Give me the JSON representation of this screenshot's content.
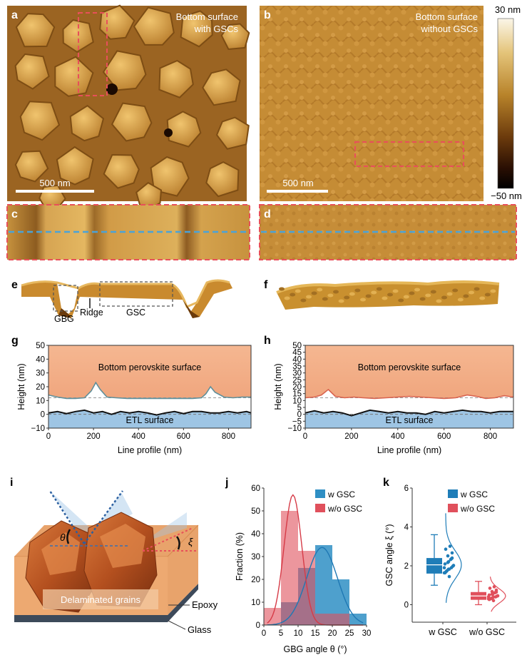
{
  "panel_letters": {
    "a": "a",
    "b": "b",
    "c": "c",
    "d": "d",
    "e": "e",
    "f": "f",
    "g": "g",
    "h": "h",
    "i": "i",
    "j": "j",
    "k": "k"
  },
  "panel_a": {
    "title_line1": "Bottom surface",
    "title_line2": "with GSCs",
    "scalebar": "500 nm"
  },
  "panel_b": {
    "title_line1": "Bottom surface",
    "title_line2": "without GSCs",
    "scalebar": "500 nm"
  },
  "colorbar": {
    "max": "30 nm",
    "min": "−50 nm"
  },
  "panel_e": {
    "labels": {
      "gbg": "GBG",
      "ridge": "Ridge",
      "gsc": "GSC"
    }
  },
  "panel_i": {
    "labels": {
      "theta": "θ",
      "xi": "ξ",
      "delaminated": "Delaminated grains",
      "epoxy": "Epoxy",
      "glass": "Glass"
    }
  },
  "chart_data": [
    {
      "id": "g",
      "type": "line",
      "xlabel": "Line profile (nm)",
      "ylabel": "Height (nm)",
      "xlim": [
        0,
        900
      ],
      "ylim": [
        -10,
        50
      ],
      "xticks": [
        0,
        200,
        400,
        600,
        800
      ],
      "yticks": [
        -10,
        0,
        10,
        20,
        30,
        40,
        50
      ],
      "annotations": [
        "Bottom perovskite surface",
        "ETL surface"
      ],
      "series": [
        {
          "role": "top",
          "color": "#5f8f9a",
          "x": [
            0,
            40,
            80,
            120,
            160,
            190,
            210,
            230,
            260,
            300,
            350,
            400,
            450,
            500,
            550,
            600,
            640,
            680,
            700,
            720,
            740,
            780,
            820,
            860,
            900
          ],
          "y": [
            14,
            12.5,
            11.5,
            11.5,
            12,
            17,
            23,
            18,
            12.5,
            12,
            11.5,
            11.5,
            11.5,
            11.5,
            11.5,
            11.5,
            11.5,
            12,
            15,
            20,
            16,
            12.5,
            12,
            12.5,
            12.5
          ]
        },
        {
          "role": "bottom",
          "color": "#111111",
          "x": [
            0,
            40,
            80,
            120,
            160,
            200,
            240,
            280,
            320,
            360,
            400,
            440,
            480,
            520,
            560,
            600,
            640,
            680,
            720,
            760,
            800,
            840,
            880,
            900
          ],
          "y": [
            1,
            2,
            0.5,
            2,
            3,
            1,
            2,
            0,
            2,
            1,
            2,
            1,
            -0.5,
            1,
            2,
            0.5,
            2,
            2,
            1,
            1,
            2,
            1,
            2,
            1
          ]
        }
      ]
    },
    {
      "id": "h",
      "type": "line",
      "xlabel": "Line profile (nm)",
      "ylabel": "Height (nm)",
      "xlim": [
        0,
        900
      ],
      "ylim": [
        -10,
        50
      ],
      "xticks": [
        0,
        200,
        400,
        600,
        800
      ],
      "yticks": [
        -10,
        -5,
        0,
        5,
        10,
        15,
        20,
        25,
        30,
        35,
        40,
        45,
        50
      ],
      "annotations": [
        "Bottom perovskite surface",
        "ETL surface"
      ],
      "series": [
        {
          "role": "top",
          "color": "#d9634f",
          "x": [
            0,
            40,
            70,
            100,
            130,
            170,
            210,
            250,
            300,
            350,
            400,
            450,
            500,
            550,
            600,
            650,
            700,
            740,
            780,
            820,
            860,
            900
          ],
          "y": [
            12,
            12.5,
            14,
            18,
            13,
            12,
            12.5,
            12,
            11.5,
            12,
            12.5,
            13,
            12.5,
            12,
            11.5,
            12,
            14,
            13,
            11.5,
            12,
            13.5,
            12.5
          ]
        },
        {
          "role": "bottom",
          "color": "#111111",
          "x": [
            0,
            40,
            80,
            120,
            160,
            200,
            240,
            280,
            320,
            360,
            400,
            440,
            480,
            520,
            560,
            600,
            640,
            680,
            720,
            760,
            800,
            840,
            880,
            900
          ],
          "y": [
            1,
            2.5,
            1,
            2,
            1,
            -1,
            1,
            3,
            2,
            1,
            2,
            1,
            1,
            0,
            2,
            1,
            2,
            3,
            2,
            2,
            1,
            2,
            2,
            2
          ]
        }
      ]
    },
    {
      "id": "j",
      "type": "bar",
      "xlabel": "GBG angle θ (°)",
      "ylabel": "Fraction (%)",
      "xlim": [
        0,
        30
      ],
      "ylim": [
        0,
        60
      ],
      "xticks": [
        0,
        5,
        10,
        15,
        20,
        25,
        30
      ],
      "yticks": [
        0,
        10,
        20,
        30,
        40,
        50,
        60
      ],
      "legend": "top-right",
      "series": [
        {
          "name": "w GSC",
          "color": "#2f8fc4",
          "bins": [
            [
              5,
              10,
              10
            ],
            [
              10,
              15,
              25
            ],
            [
              15,
              20,
              35
            ],
            [
              20,
              25,
              20
            ],
            [
              25,
              30,
              5
            ]
          ]
        },
        {
          "name": "w/o GSC",
          "color": "#e0505c",
          "bins": [
            [
              0,
              5,
              7.5
            ],
            [
              5,
              10,
              50
            ],
            [
              10,
              15,
              32.5
            ],
            [
              15,
              20,
              5
            ],
            [
              20,
              25,
              5
            ]
          ]
        }
      ]
    },
    {
      "id": "k",
      "type": "box",
      "xlabel": "",
      "ylabel": "GSC angle ξ (°)",
      "ylim": [
        -0.9,
        6
      ],
      "yticks": [
        0,
        2,
        4,
        6
      ],
      "categories": [
        "w GSC",
        "w/o GSC"
      ],
      "legend": "top-right",
      "series": [
        {
          "name": "w GSC",
          "color": "#1f7db8",
          "min": 1.0,
          "q1": 1.6,
          "median": 2.05,
          "q3": 2.4,
          "max": 3.6
        },
        {
          "name": "w/o GSC",
          "color": "#e0505c",
          "min": 0.0,
          "q1": 0.25,
          "median": 0.45,
          "q3": 0.65,
          "max": 1.2
        }
      ]
    }
  ]
}
